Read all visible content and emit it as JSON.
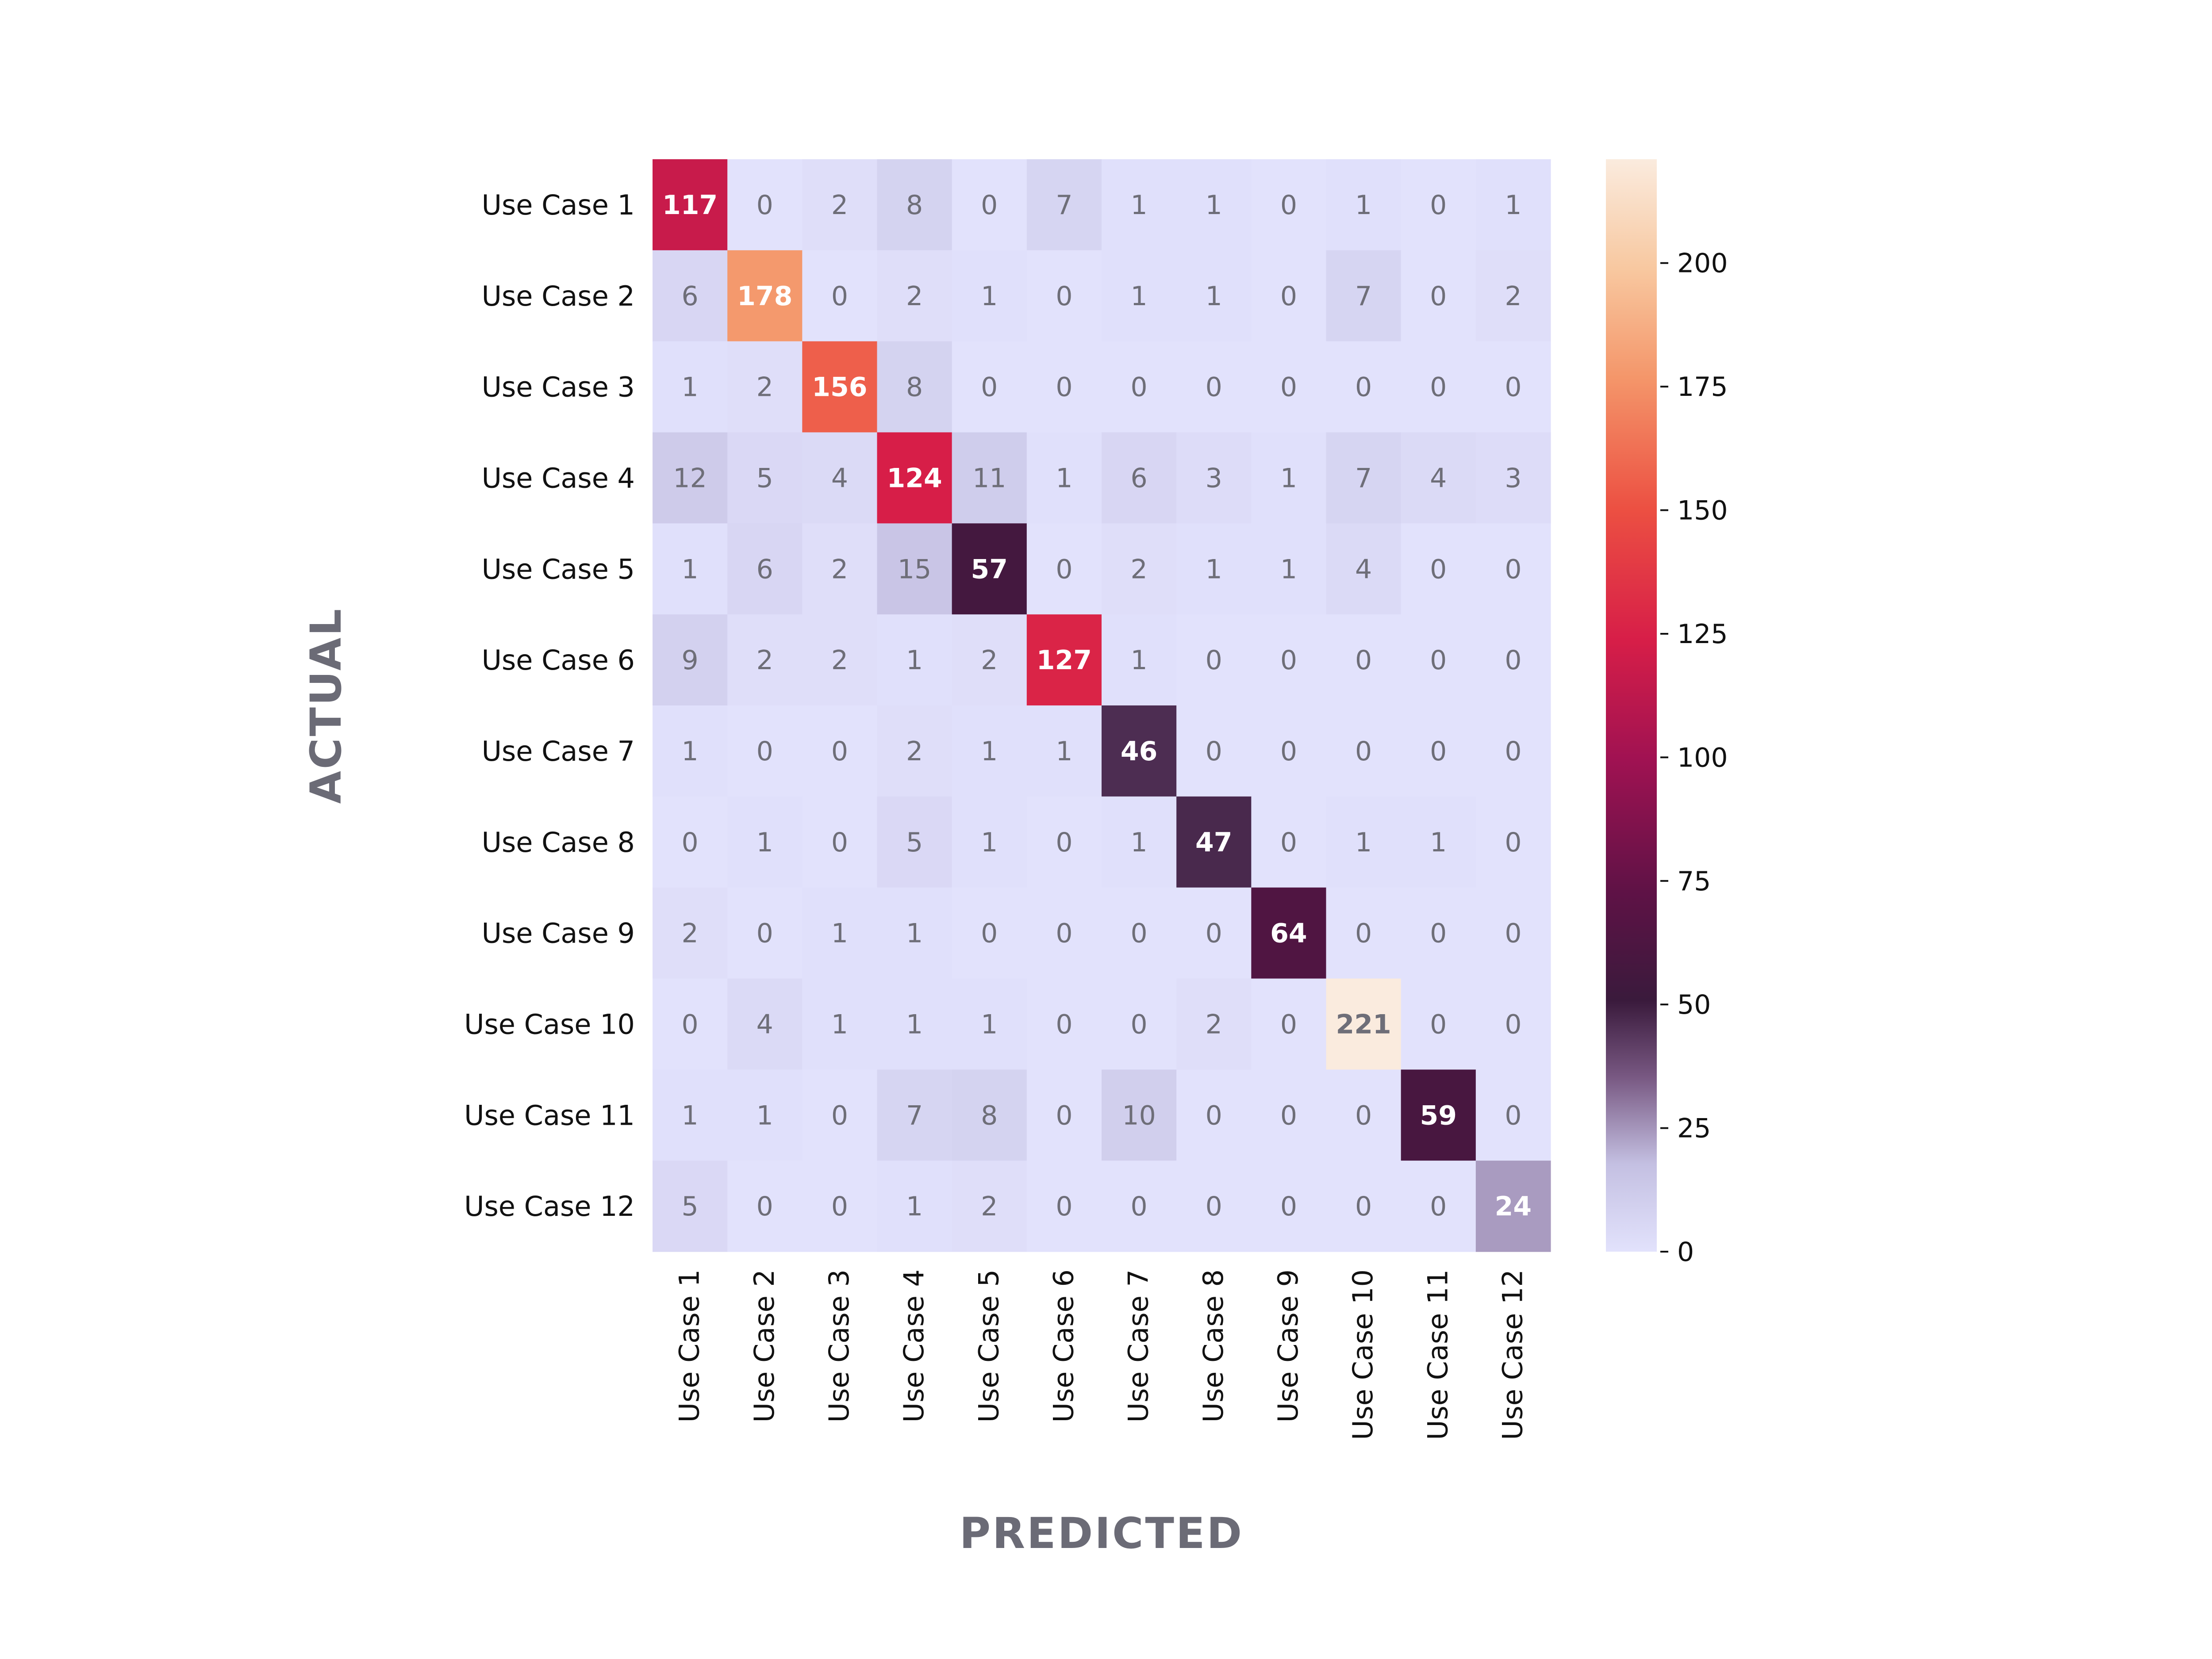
{
  "chart_data": {
    "type": "heatmap",
    "title": "",
    "xlabel": "PREDICTED",
    "ylabel": "ACTUAL",
    "x_categories": [
      "Use Case 1",
      "Use Case 2",
      "Use Case 3",
      "Use Case 4",
      "Use Case 5",
      "Use Case 6",
      "Use Case 7",
      "Use Case 8",
      "Use Case 9",
      "Use Case 10",
      "Use Case 11",
      "Use Case 12"
    ],
    "y_categories": [
      "Use Case 1",
      "Use Case 2",
      "Use Case 3",
      "Use Case 4",
      "Use Case 5",
      "Use Case 6",
      "Use Case 7",
      "Use Case 8",
      "Use Case 9",
      "Use Case 10",
      "Use Case 11",
      "Use Case 12"
    ],
    "values": [
      [
        117,
        0,
        2,
        8,
        0,
        7,
        1,
        1,
        0,
        1,
        0,
        1
      ],
      [
        6,
        178,
        0,
        2,
        1,
        0,
        1,
        1,
        0,
        7,
        0,
        2
      ],
      [
        1,
        2,
        156,
        8,
        0,
        0,
        0,
        0,
        0,
        0,
        0,
        0
      ],
      [
        12,
        5,
        4,
        124,
        11,
        1,
        6,
        3,
        1,
        7,
        4,
        3
      ],
      [
        1,
        6,
        2,
        15,
        57,
        0,
        2,
        1,
        1,
        4,
        0,
        0
      ],
      [
        9,
        2,
        2,
        1,
        2,
        127,
        1,
        0,
        0,
        0,
        0,
        0
      ],
      [
        1,
        0,
        0,
        2,
        1,
        1,
        46,
        0,
        0,
        0,
        0,
        0
      ],
      [
        0,
        1,
        0,
        5,
        1,
        0,
        1,
        47,
        0,
        1,
        1,
        0
      ],
      [
        2,
        0,
        1,
        1,
        0,
        0,
        0,
        0,
        64,
        0,
        0,
        0
      ],
      [
        0,
        4,
        1,
        1,
        1,
        0,
        0,
        2,
        0,
        221,
        0,
        0
      ],
      [
        1,
        1,
        0,
        7,
        8,
        0,
        10,
        0,
        0,
        0,
        59,
        0
      ],
      [
        5,
        0,
        0,
        1,
        2,
        0,
        0,
        0,
        0,
        0,
        0,
        24
      ]
    ],
    "colorbar": {
      "range": [
        0,
        221
      ],
      "ticks": [
        0,
        25,
        50,
        75,
        100,
        125,
        150,
        175,
        200
      ],
      "colormap": "rocket_r"
    },
    "grid": false
  }
}
